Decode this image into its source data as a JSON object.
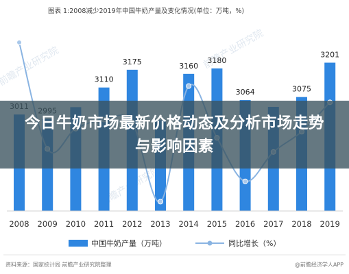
{
  "chart_data": {
    "type": "bar+line",
    "title": "图表 1:2008减少2019年中国牛奶产量及变化情况(单位：万吨，%)",
    "categories": [
      "2008",
      "2009",
      "2010",
      "2011",
      "2012",
      "2013",
      "2014",
      "2015",
      "2016",
      "2017",
      "2018",
      "2019"
    ],
    "series": [
      {
        "name": "中国牛奶产量（万吨）",
        "type": "bar",
        "color": "#2f86e0",
        "values": [
          3011,
          2995,
          3038,
          3110,
          3175,
          2990,
          3160,
          3180,
          3064,
          3039,
          3075,
          3201
        ],
        "value_labels": [
          "3011",
          "2995",
          "",
          "3110",
          "3175",
          "",
          "3160",
          "3180",
          "3064",
          "",
          "3075",
          "3201"
        ]
      },
      {
        "name": "同比增长（%）",
        "type": "line",
        "color": "#8ab4e2",
        "values": [
          10.0,
          -0.5,
          1.5,
          2.4,
          2.1,
          -5.7,
          5.7,
          0.6,
          -3.7,
          -0.8,
          1.2,
          4.1
        ]
      }
    ],
    "legend_position": "bottom"
  },
  "banner": {
    "title": "今日牛奶市场最新价格动态及分析市场走势与影响因素"
  },
  "footer": {
    "source": "资料来源：国家统计局 前瞻产业研究院整理",
    "brand": "@前瞻经济学人APP"
  },
  "watermarks": [
    "前瞻产业研究院",
    "前瞻产业研究院",
    "前瞻产业研究院"
  ]
}
